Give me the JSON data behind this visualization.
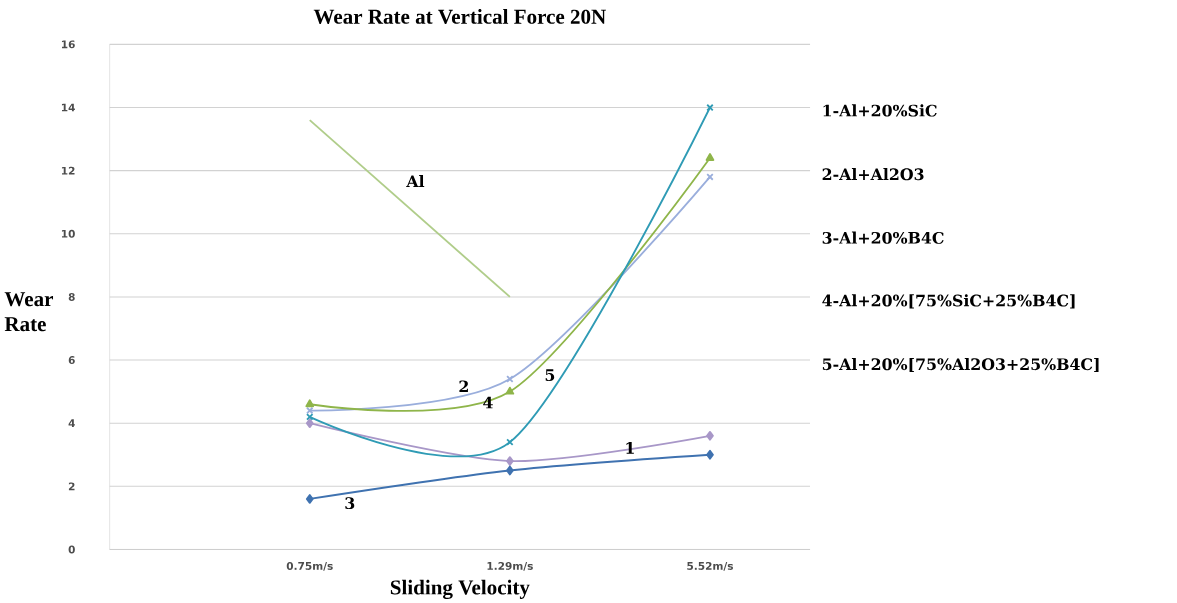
{
  "chart_data": {
    "type": "line",
    "title": "Wear Rate at Vertical Force 20N",
    "xlabel": "Sliding Velocity",
    "ylabel": "Wear Rate",
    "categories": [
      "0.75m/s",
      "1.29m/s",
      "5.52m/s"
    ],
    "ylim": [
      0,
      16
    ],
    "yticks": [
      0,
      2,
      4,
      6,
      8,
      10,
      12,
      14,
      16
    ],
    "grid": "y",
    "series": [
      {
        "name": "1",
        "color": "#a897c8",
        "marker": "diamond",
        "values": [
          4.0,
          2.8,
          3.6
        ]
      },
      {
        "name": "2",
        "color": "#9aaedc",
        "marker": "cross",
        "values": [
          4.4,
          5.4,
          11.8
        ]
      },
      {
        "name": "3",
        "color": "#3f72b0",
        "marker": "diamond",
        "values": [
          1.6,
          2.5,
          3.0
        ]
      },
      {
        "name": "4",
        "color": "#8fb54a",
        "marker": "triangle",
        "values": [
          4.6,
          5.0,
          12.4
        ]
      },
      {
        "name": "5",
        "color": "#2f9bb5",
        "marker": "cross",
        "values": [
          4.2,
          3.4,
          14.0
        ]
      },
      {
        "name": "Al",
        "color": "#b0cd8a",
        "marker": "none",
        "line_style": "solid",
        "values": [
          13.6,
          8.0,
          null
        ]
      }
    ],
    "annotations": [
      "1-Al+20%SiC",
      "2-Al+Al2O3",
      "3-Al+20%B4C",
      "4-Al+20%[75%SiC+25%B4C]",
      "5-Al+20%[75%Al2O3+25%B4C]"
    ]
  }
}
